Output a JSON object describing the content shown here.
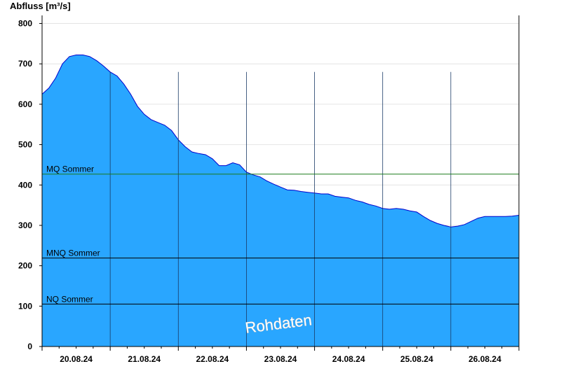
{
  "chart_data": {
    "type": "area",
    "ylabel": "Abfluss [m³/s]",
    "ylim": [
      0,
      820
    ],
    "yticks": [
      0,
      100,
      200,
      300,
      400,
      500,
      600,
      700,
      800
    ],
    "xlim": [
      0,
      7
    ],
    "day_labels": [
      "20.08.24",
      "21.08.24",
      "22.08.24",
      "23.08.24",
      "24.08.24",
      "25.08.24",
      "26.08.24"
    ],
    "series": [
      {
        "points": [
          [
            0.0,
            625
          ],
          [
            0.1,
            640
          ],
          [
            0.2,
            665
          ],
          [
            0.3,
            700
          ],
          [
            0.4,
            718
          ],
          [
            0.5,
            722
          ],
          [
            0.6,
            722
          ],
          [
            0.7,
            718
          ],
          [
            0.8,
            708
          ],
          [
            0.9,
            695
          ],
          [
            1.0,
            680
          ],
          [
            1.1,
            670
          ],
          [
            1.2,
            650
          ],
          [
            1.3,
            625
          ],
          [
            1.4,
            595
          ],
          [
            1.5,
            575
          ],
          [
            1.6,
            562
          ],
          [
            1.7,
            555
          ],
          [
            1.8,
            548
          ],
          [
            1.9,
            535
          ],
          [
            2.0,
            512
          ],
          [
            2.1,
            495
          ],
          [
            2.2,
            482
          ],
          [
            2.3,
            478
          ],
          [
            2.4,
            475
          ],
          [
            2.5,
            465
          ],
          [
            2.6,
            448
          ],
          [
            2.7,
            448
          ],
          [
            2.8,
            455
          ],
          [
            2.9,
            450
          ],
          [
            3.0,
            432
          ],
          [
            3.1,
            425
          ],
          [
            3.2,
            420
          ],
          [
            3.3,
            410
          ],
          [
            3.4,
            402
          ],
          [
            3.5,
            395
          ],
          [
            3.6,
            388
          ],
          [
            3.7,
            387
          ],
          [
            3.8,
            384
          ],
          [
            3.9,
            382
          ],
          [
            4.0,
            380
          ],
          [
            4.1,
            378
          ],
          [
            4.2,
            378
          ],
          [
            4.3,
            372
          ],
          [
            4.4,
            370
          ],
          [
            4.5,
            368
          ],
          [
            4.6,
            362
          ],
          [
            4.7,
            358
          ],
          [
            4.8,
            352
          ],
          [
            4.9,
            348
          ],
          [
            5.0,
            342
          ],
          [
            5.1,
            340
          ],
          [
            5.2,
            342
          ],
          [
            5.3,
            340
          ],
          [
            5.4,
            336
          ],
          [
            5.5,
            333
          ],
          [
            5.6,
            322
          ],
          [
            5.7,
            312
          ],
          [
            5.8,
            305
          ],
          [
            5.9,
            300
          ],
          [
            6.0,
            296
          ],
          [
            6.1,
            298
          ],
          [
            6.2,
            302
          ],
          [
            6.3,
            310
          ],
          [
            6.4,
            318
          ],
          [
            6.5,
            322
          ],
          [
            6.6,
            322
          ],
          [
            6.7,
            322
          ],
          [
            6.8,
            322
          ],
          [
            6.9,
            323
          ],
          [
            7.0,
            325
          ]
        ]
      }
    ],
    "thresholds": [
      {
        "label": "MQ Sommer",
        "value": 427,
        "color": "#1a7a1a"
      },
      {
        "label": "MNQ Sommer",
        "value": 219,
        "color": "#000000"
      },
      {
        "label": "NQ Sommer",
        "value": 105,
        "color": "#000000"
      }
    ],
    "watermark": "Rohdaten",
    "grid": true,
    "colors": {
      "fill": "#29a6ff",
      "line": "#0000cc",
      "grid": "#e4e4e4",
      "day_lines": "#1a3a66"
    }
  }
}
